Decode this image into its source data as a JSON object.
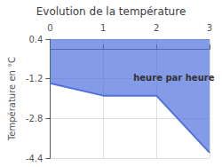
{
  "chart_data": {
    "type": "line",
    "title": "Evolution de la température",
    "ylabel": "Température en °C",
    "x": [
      0,
      1,
      2,
      3
    ],
    "values": [
      -1.38,
      -1.88,
      -1.88,
      -4.18
    ],
    "xlim": [
      0,
      3
    ],
    "xticks": [
      0,
      1,
      2,
      3
    ],
    "ylim": [
      -4.4,
      0.4
    ],
    "yticks": [
      0.4,
      -1.2,
      -2.8,
      -4.4
    ],
    "grid": true,
    "annotations": [
      {
        "text": "heure par heure",
        "x": 1.55,
        "y": -1.35
      }
    ]
  }
}
